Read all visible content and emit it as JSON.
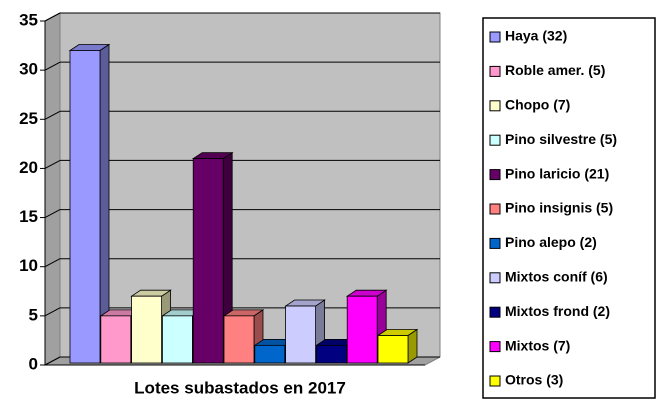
{
  "chart_data": {
    "type": "bar3d",
    "x_label": "Lotes subastados en 2017",
    "series": [
      {
        "name": "Haya (32)",
        "color": "#9999FF",
        "values": [
          32
        ]
      },
      {
        "name": "Roble amer. (5)",
        "color": "#FF99CC",
        "values": [
          5
        ]
      },
      {
        "name": "Chopo (7)",
        "color": "#FFFFCC",
        "values": [
          7
        ]
      },
      {
        "name": "Pino silvestre (5)",
        "color": "#CCFFFF",
        "values": [
          5
        ]
      },
      {
        "name": "Pino laricio (21)",
        "color": "#660066",
        "values": [
          21
        ]
      },
      {
        "name": "Pino insignis (5)",
        "color": "#FF8080",
        "values": [
          5
        ]
      },
      {
        "name": "Pino alepo (2)",
        "color": "#0066CC",
        "values": [
          2
        ]
      },
      {
        "name": "Mixtos coníf (6)",
        "color": "#CCCCFF",
        "values": [
          6
        ]
      },
      {
        "name": "Mixtos frond (2)",
        "color": "#000080",
        "values": [
          2
        ]
      },
      {
        "name": "Mixtos (7)",
        "color": "#FF00FF",
        "values": [
          7
        ]
      },
      {
        "name": "Otros (3)",
        "color": "#FFFF00",
        "values": [
          3
        ]
      }
    ],
    "ylim": [
      0,
      35
    ],
    "yticks": [
      0,
      5,
      10,
      15,
      20,
      25,
      30,
      35
    ],
    "grid": true,
    "legend": "right"
  }
}
